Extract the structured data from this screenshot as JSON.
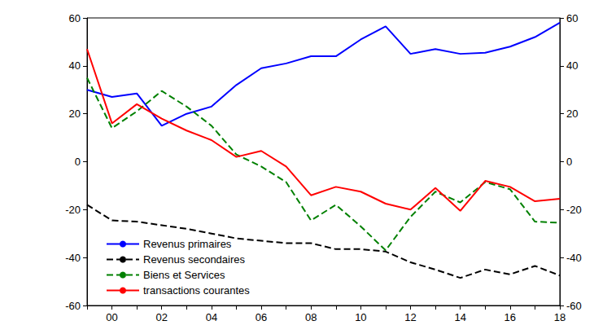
{
  "chart_data": {
    "type": "line",
    "categories": [
      null,
      "00",
      null,
      "02",
      null,
      "04",
      null,
      "06",
      null,
      "08",
      null,
      "10",
      null,
      "12",
      null,
      "14",
      null,
      "16",
      null,
      "18"
    ],
    "series": [
      {
        "name": "Revenus primaires",
        "color": "#0000ff",
        "line_style": "solid",
        "marker": "none",
        "values": [
          30,
          27,
          28.5,
          15,
          20,
          23,
          32,
          39,
          41,
          44,
          44,
          51,
          56.5,
          45,
          47,
          45,
          45.5,
          48,
          52,
          58
        ]
      },
      {
        "name": "Revenus secondaires",
        "color": "#000000",
        "line_style": "dashed",
        "marker": "none",
        "values": [
          -18,
          -24.5,
          -25,
          -26.5,
          -28,
          -30,
          -32,
          -33,
          -34,
          -34,
          -36.5,
          -36.5,
          -37.5,
          -42,
          -45,
          -48.5,
          -45,
          -47,
          -43.5,
          -47.5
        ]
      },
      {
        "name": "Biens et Services",
        "color": "#008000",
        "line_style": "dashed",
        "marker": "none",
        "values": [
          35,
          14,
          21,
          29.5,
          23,
          15,
          3,
          -2,
          -8.5,
          -24.5,
          -18,
          -27,
          -37,
          -23,
          -12.5,
          -17,
          -8.5,
          -11.5,
          -25,
          -25.5
        ]
      },
      {
        "name": "transactions courantes",
        "color": "#ff0000",
        "line_style": "solid",
        "marker": "none",
        "values": [
          47,
          16,
          24,
          18,
          13,
          9,
          2,
          4.5,
          -2,
          -14,
          -10.5,
          -12.5,
          -17.5,
          -20,
          -11,
          -20.5,
          -8,
          -10.5,
          -16.5,
          -15.5
        ]
      }
    ],
    "ylim": [
      -60,
      60
    ],
    "yticks": [
      -60,
      -40,
      -20,
      0,
      20,
      40,
      60
    ],
    "y2lim": [
      -60,
      60
    ],
    "y2ticks": [
      -60,
      -40,
      -20,
      0,
      20,
      40,
      60
    ],
    "grid": false,
    "legend": "lower left"
  }
}
